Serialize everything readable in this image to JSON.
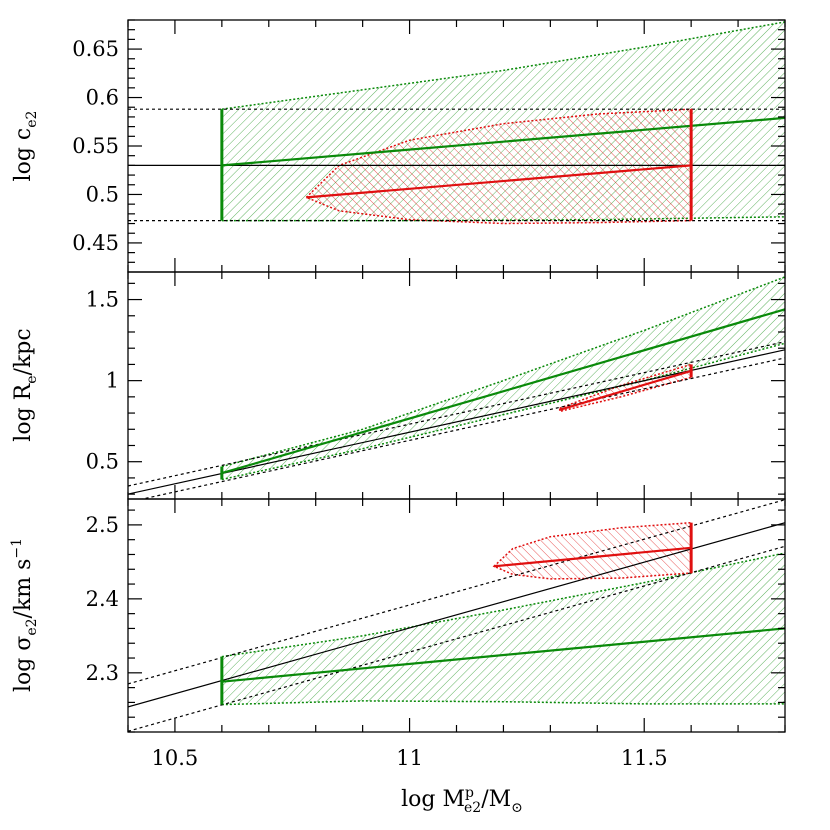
{
  "chart_data": [
    {
      "type": "line",
      "panel": "top",
      "ylabel": {
        "main": "log c",
        "sub": "e2"
      },
      "xlim": [
        10.4,
        11.8
      ],
      "ylim": [
        0.42,
        0.68
      ],
      "yticks": [
        0.45,
        0.5,
        0.55,
        0.6,
        0.65
      ],
      "ytick_labels": [
        "0.45",
        "0.5",
        "0.55",
        "0.6",
        "0.65"
      ],
      "colors": {
        "green": "#0a8a0a",
        "red": "#e01010",
        "black": "#000000"
      },
      "reference": {
        "line": [
          [
            10.4,
            0.53
          ],
          [
            11.8,
            0.53
          ]
        ],
        "dotted": [
          [
            [
              10.4,
              0.588
            ],
            [
              11.8,
              0.588
            ]
          ],
          [
            [
              10.4,
              0.473
            ],
            [
              11.8,
              0.473
            ]
          ]
        ]
      },
      "green": {
        "line": [
          [
            10.6,
            0.53
          ],
          [
            11.8,
            0.579
          ]
        ],
        "upper": [
          [
            10.6,
            0.588
          ],
          [
            10.9,
            0.608
          ],
          [
            11.2,
            0.628
          ],
          [
            11.5,
            0.652
          ],
          [
            11.8,
            0.678
          ]
        ],
        "lower": [
          [
            10.6,
            0.473
          ],
          [
            11.0,
            0.473
          ],
          [
            11.4,
            0.474
          ],
          [
            11.8,
            0.477
          ]
        ],
        "bar_x": 10.6,
        "bar_y": [
          0.473,
          0.588
        ]
      },
      "red": {
        "line": [
          [
            10.78,
            0.497
          ],
          [
            11.6,
            0.53
          ]
        ],
        "upper": [
          [
            10.78,
            0.497
          ],
          [
            10.85,
            0.53
          ],
          [
            11.0,
            0.556
          ],
          [
            11.2,
            0.573
          ],
          [
            11.4,
            0.583
          ],
          [
            11.6,
            0.588
          ]
        ],
        "lower": [
          [
            10.78,
            0.497
          ],
          [
            10.85,
            0.483
          ],
          [
            11.0,
            0.474
          ],
          [
            11.2,
            0.47
          ],
          [
            11.4,
            0.471
          ],
          [
            11.6,
            0.473
          ]
        ],
        "bar_x": 11.6,
        "bar_y": [
          0.473,
          0.588
        ]
      }
    },
    {
      "type": "line",
      "panel": "middle",
      "ylabel": {
        "main": "log R",
        "sub": "e",
        "suffix": "/kpc"
      },
      "xlim": [
        10.4,
        11.8
      ],
      "ylim": [
        0.27,
        1.67
      ],
      "yticks": [
        0.5,
        1,
        1.5
      ],
      "ytick_labels": [
        "0.5",
        "1",
        "1.5"
      ],
      "colors": {
        "green": "#0a8a0a",
        "red": "#e01010",
        "black": "#000000"
      },
      "reference": {
        "line": [
          [
            10.4,
            0.3
          ],
          [
            11.8,
            1.19
          ]
        ],
        "dotted": [
          [
            [
              10.4,
              0.35
            ],
            [
              11.8,
              1.24
            ]
          ],
          [
            [
              10.4,
              0.25
            ],
            [
              11.8,
              1.14
            ]
          ]
        ]
      },
      "green": {
        "line": [
          [
            10.6,
            0.43
          ],
          [
            11.8,
            1.44
          ]
        ],
        "upper": [
          [
            10.6,
            0.47
          ],
          [
            10.9,
            0.7
          ],
          [
            11.2,
            1.0
          ],
          [
            11.5,
            1.31
          ],
          [
            11.8,
            1.64
          ]
        ],
        "lower": [
          [
            10.6,
            0.39
          ],
          [
            10.9,
            0.58
          ],
          [
            11.2,
            0.79
          ],
          [
            11.5,
            1.0
          ],
          [
            11.8,
            1.23
          ]
        ],
        "bar_x": 10.6,
        "bar_y": [
          0.39,
          0.47
        ]
      },
      "red": {
        "line": [
          [
            11.32,
            0.82
          ],
          [
            11.6,
            1.06
          ]
        ],
        "upper": [
          [
            11.32,
            0.83
          ],
          [
            11.45,
            0.97
          ],
          [
            11.6,
            1.1
          ]
        ],
        "lower": [
          [
            11.32,
            0.81
          ],
          [
            11.45,
            0.9
          ],
          [
            11.6,
            1.02
          ]
        ],
        "bar_x": 11.6,
        "bar_y": [
          1.02,
          1.1
        ]
      }
    },
    {
      "type": "line",
      "panel": "bottom",
      "ylabel": {
        "main": "log σ",
        "sub": "e2",
        "suffix": "/km s",
        "sup": "−1"
      },
      "xlabel": {
        "main": "log M",
        "sup": "p",
        "sub": "e2",
        "suffix": "/M",
        "sub2": "⊙"
      },
      "xlim": [
        10.4,
        11.8
      ],
      "ylim": [
        2.22,
        2.535
      ],
      "yticks": [
        2.3,
        2.4,
        2.5
      ],
      "ytick_labels": [
        "2.3",
        "2.4",
        "2.5"
      ],
      "xticks": [
        10.5,
        11,
        11.5
      ],
      "xtick_labels": [
        "10.5",
        "11",
        "11.5"
      ],
      "colors": {
        "green": "#0a8a0a",
        "red": "#e01010",
        "black": "#000000"
      },
      "reference": {
        "line": [
          [
            10.4,
            2.254
          ],
          [
            11.8,
            2.503
          ]
        ],
        "dotted": [
          [
            [
              10.4,
              2.285
            ],
            [
              11.8,
              2.534
            ]
          ],
          [
            [
              10.4,
              2.221
            ],
            [
              11.8,
              2.471
            ]
          ]
        ]
      },
      "green": {
        "line": [
          [
            10.6,
            2.288
          ],
          [
            11.8,
            2.36
          ]
        ],
        "upper": [
          [
            10.6,
            2.322
          ],
          [
            10.9,
            2.35
          ],
          [
            11.2,
            2.385
          ],
          [
            11.5,
            2.422
          ],
          [
            11.8,
            2.462
          ]
        ],
        "lower": [
          [
            10.6,
            2.257
          ],
          [
            10.9,
            2.262
          ],
          [
            11.2,
            2.261
          ],
          [
            11.5,
            2.258
          ],
          [
            11.8,
            2.258
          ]
        ],
        "bar_x": 10.6,
        "bar_y": [
          2.257,
          2.322
        ]
      },
      "red": {
        "line": [
          [
            11.18,
            2.444
          ],
          [
            11.6,
            2.469
          ]
        ],
        "upper": [
          [
            11.18,
            2.444
          ],
          [
            11.22,
            2.468
          ],
          [
            11.3,
            2.484
          ],
          [
            11.45,
            2.496
          ],
          [
            11.6,
            2.503
          ]
        ],
        "lower": [
          [
            11.18,
            2.444
          ],
          [
            11.22,
            2.433
          ],
          [
            11.3,
            2.427
          ],
          [
            11.45,
            2.428
          ],
          [
            11.6,
            2.435
          ]
        ],
        "bar_x": 11.6,
        "bar_y": [
          2.435,
          2.503
        ]
      }
    }
  ]
}
